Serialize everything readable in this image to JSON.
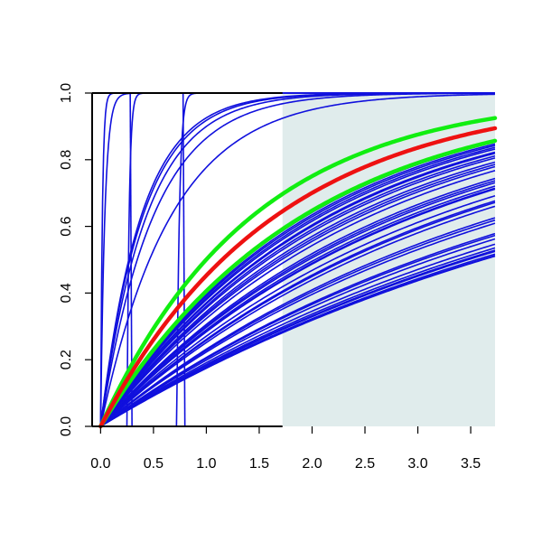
{
  "chart_data": {
    "type": "line",
    "title": "",
    "xlabel": "",
    "ylabel": "",
    "xlim": [
      -0.08,
      3.73
    ],
    "ylim": [
      0,
      1
    ],
    "x_ticks": [
      "0.0",
      "0.5",
      "1.0",
      "1.5",
      "2.0",
      "2.5",
      "3.0",
      "3.5"
    ],
    "y_ticks": [
      "0.0",
      "0.2",
      "0.4",
      "0.6",
      "0.8",
      "1.0"
    ],
    "grid": false,
    "shaded_region": {
      "x_from": 1.72,
      "x_to": 3.73,
      "color": "#e0ecec"
    },
    "colors": {
      "blue": "#1010dd",
      "red": "#ee1111",
      "green": "#11ee11",
      "axes": "#000000"
    },
    "curve_families": {
      "blue_fast_cdfs": {
        "comment_free": true,
        "color": "blue",
        "rates": [
          1.5,
          2.0,
          2.3,
          2.5,
          2.6
        ]
      },
      "blue_steps": {
        "color": "blue",
        "shifted_fast": [
          {
            "shift": 0.25,
            "rate": 50
          },
          {
            "shift": 0.72,
            "rate": 40
          }
        ],
        "near_vertical_at_zero": [
          {
            "rate": 25
          },
          {
            "rate": 60
          }
        ],
        "step_drops": [
          0.28,
          0.78
        ]
      },
      "blue_slow_cdfs": {
        "color": "blue",
        "rates": [
          0.1916,
          0.1925,
          0.195,
          0.1995,
          0.2015,
          0.2055,
          0.212,
          0.2215,
          0.228,
          0.2315,
          0.252,
          0.2585,
          0.2635,
          0.2895,
          0.2985,
          0.3025,
          0.3155,
          0.3335,
          0.336,
          0.342,
          0.352,
          0.358,
          0.365,
          0.391,
          0.405,
          0.413,
          0.422,
          0.4385,
          0.447,
          0.4585,
          0.4635,
          0.478,
          0.486,
          0.4955,
          0.5035,
          0.5135
        ]
      },
      "red_cdf": {
        "color": "red",
        "rate": 0.6026
      },
      "green_cdfs": {
        "color": "green",
        "rates": [
          0.6943,
          0.5209
        ]
      }
    }
  }
}
